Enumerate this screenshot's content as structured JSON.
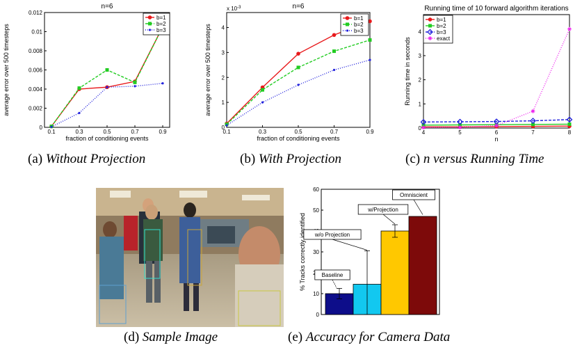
{
  "captions": {
    "a_prefix": "(a) ",
    "a_text": "Without Projection",
    "b_prefix": "(b) ",
    "b_text": "With Projection",
    "c_prefix": "(c) ",
    "c_text_math": "n",
    "c_text": " versus Running Time",
    "d_prefix": "(d) ",
    "d_text": "Sample Image",
    "e_prefix": "(e) ",
    "e_text": "Accuracy for Camera Data"
  },
  "chart_data": [
    {
      "id": "a",
      "type": "line",
      "title": "n=6",
      "xlabel": "fraction of conditioning events",
      "ylabel": "average error over 500 timesteps",
      "x": [
        0.1,
        0.3,
        0.5,
        0.7,
        0.9
      ],
      "xticks": [
        "0.1",
        "0.3",
        "0.5",
        "0.7",
        "0.9"
      ],
      "yticks": [
        "0",
        "0.002",
        "0.004",
        "0.006",
        "0.008",
        "0.01",
        "0.012"
      ],
      "xlim": [
        0.05,
        0.95
      ],
      "ylim": [
        0,
        0.012
      ],
      "legend_position": "top-right",
      "series": [
        {
          "name": "b=1",
          "color": "#e8191b",
          "style": "solid",
          "marker": "circle",
          "values": [
            0.0001,
            0.004,
            0.0042,
            0.0048,
            0.0105
          ]
        },
        {
          "name": "b=2",
          "color": "#22cc22",
          "style": "dashed",
          "marker": "square",
          "values": [
            0.0001,
            0.0041,
            0.006,
            0.0047,
            0.0105
          ]
        },
        {
          "name": "b=3",
          "color": "#2222dd",
          "style": "dotted",
          "marker": "dot",
          "values": [
            5e-05,
            0.0015,
            0.0042,
            0.0043,
            0.0046
          ]
        }
      ]
    },
    {
      "id": "b",
      "type": "line",
      "title": "n=6",
      "xlabel": "fraction of conditioning events",
      "ylabel": "average error over 500 timesteps",
      "exponent_label": "x 10",
      "exponent_power": "-3",
      "x": [
        0.1,
        0.3,
        0.5,
        0.7,
        0.9
      ],
      "xticks": [
        "0.1",
        "0.3",
        "0.5",
        "0.7",
        "0.9"
      ],
      "yticks": [
        "0",
        "1",
        "2",
        "3",
        "4"
      ],
      "xlim": [
        0.1,
        0.9
      ],
      "ylim": [
        0,
        4.6
      ],
      "legend_position": "top-right",
      "series": [
        {
          "name": "b=1",
          "color": "#e8191b",
          "style": "solid",
          "marker": "circle",
          "values": [
            0.15,
            1.6,
            2.95,
            3.7,
            4.25
          ]
        },
        {
          "name": "b=2",
          "color": "#22cc22",
          "style": "dashed",
          "marker": "square",
          "values": [
            0.12,
            1.5,
            2.4,
            3.05,
            3.5
          ]
        },
        {
          "name": "b=3",
          "color": "#2222dd",
          "style": "dotted",
          "marker": "dot",
          "values": [
            0.08,
            1.0,
            1.7,
            2.3,
            2.7
          ]
        }
      ]
    },
    {
      "id": "c",
      "type": "line",
      "title": "Running time of 10 forward algorithm iterations",
      "xlabel": "n",
      "ylabel": "Running time in seconds",
      "x": [
        4,
        5,
        6,
        7,
        8
      ],
      "xticks": [
        "4",
        "5",
        "6",
        "7",
        "8"
      ],
      "yticks": [
        "0",
        "1",
        "2",
        "3",
        "4"
      ],
      "xlim": [
        4,
        8
      ],
      "ylim": [
        0,
        4.7
      ],
      "legend_position": "top-left",
      "series": [
        {
          "name": "b=1",
          "color": "#e8191b",
          "style": "solid",
          "marker": "circle",
          "values": [
            0.05,
            0.05,
            0.06,
            0.07,
            0.08
          ]
        },
        {
          "name": "b=2",
          "color": "#22cc22",
          "style": "solid",
          "marker": "square",
          "values": [
            0.12,
            0.13,
            0.14,
            0.15,
            0.16
          ]
        },
        {
          "name": "b=3",
          "color": "#2222dd",
          "style": "dashed",
          "marker": "diamond",
          "values": [
            0.25,
            0.26,
            0.27,
            0.3,
            0.35
          ]
        },
        {
          "name": "exact",
          "color": "#ee22ee",
          "style": "dotted",
          "marker": "star",
          "values": [
            0.02,
            0.03,
            0.1,
            0.7,
            4.1
          ]
        }
      ]
    },
    {
      "id": "e",
      "type": "bar",
      "ylabel": "% Tracks correctly identified",
      "categories": [
        "Baseline",
        "w/o Projection",
        "w/Projection",
        "Omniscient"
      ],
      "values": [
        10,
        14.5,
        40,
        47
      ],
      "error": [
        2.5,
        16,
        3,
        0
      ],
      "colors": [
        "#0d0d8a",
        "#12c8f0",
        "#ffc800",
        "#7d0a0a"
      ],
      "yticks": [
        "0",
        "10",
        "20",
        "30",
        "40",
        "50",
        "60"
      ],
      "ylim": [
        0,
        60
      ]
    }
  ]
}
